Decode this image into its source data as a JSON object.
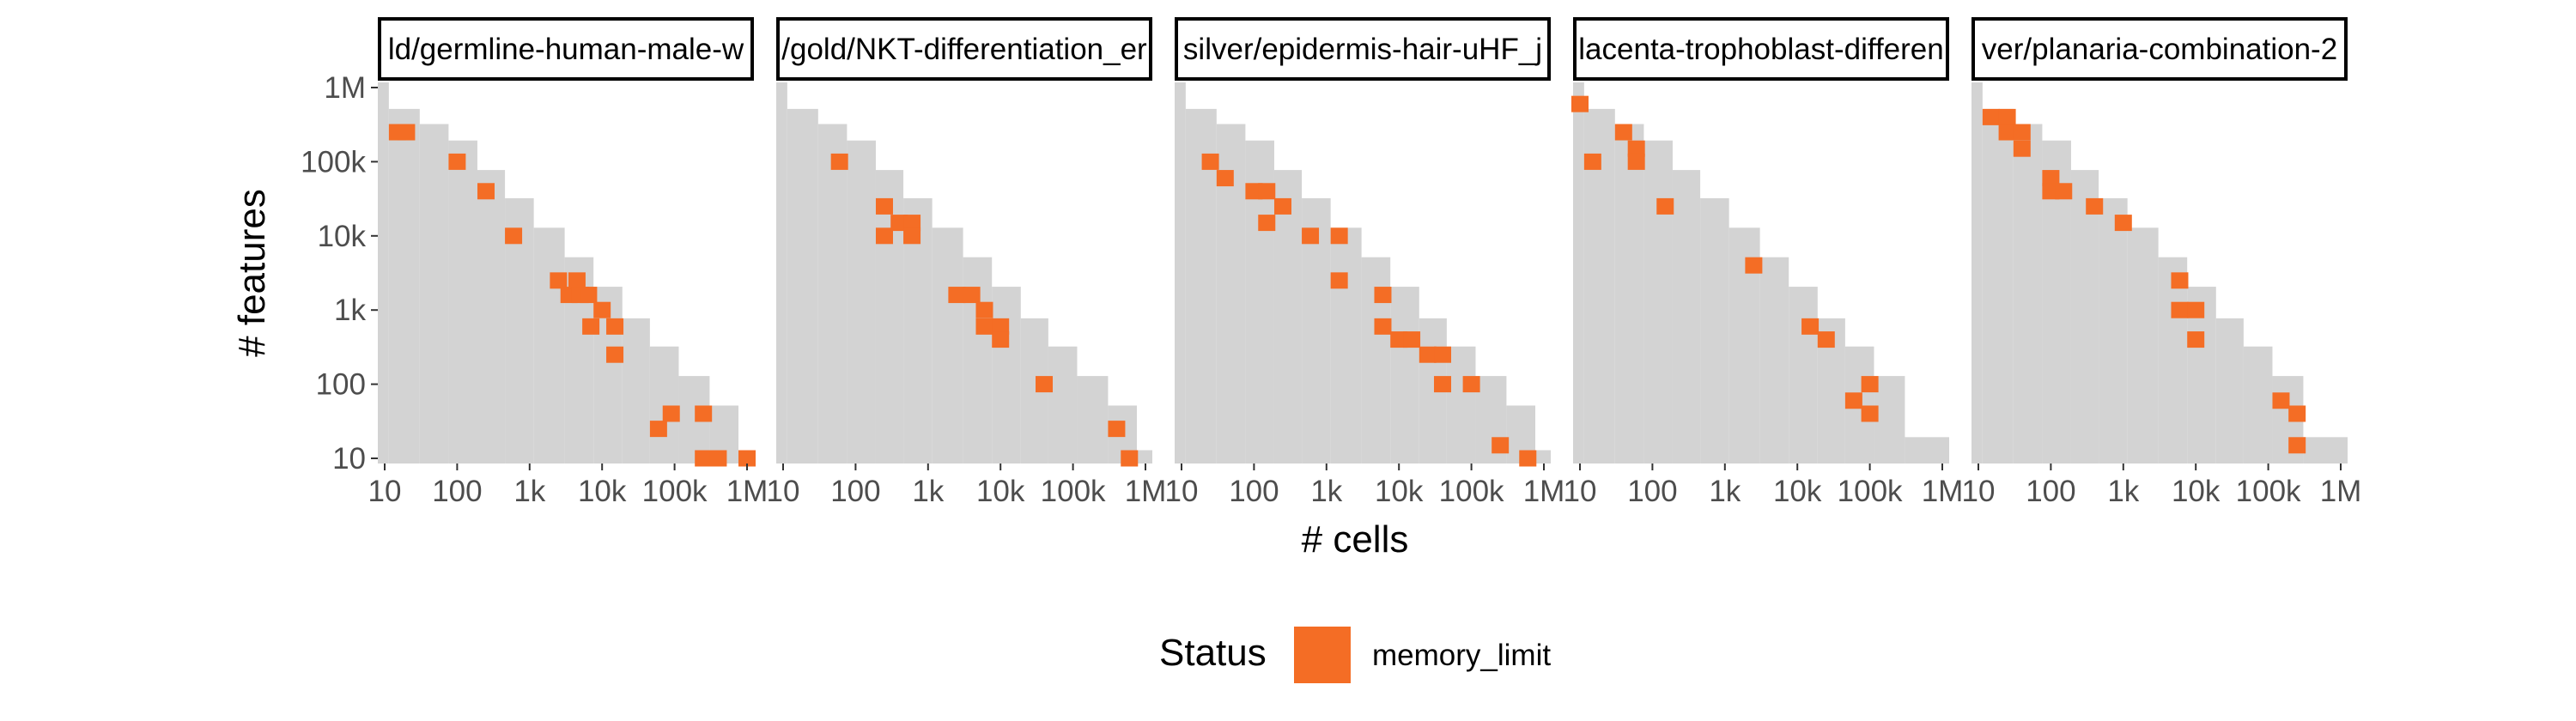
{
  "chart_data": {
    "type": "heatmap",
    "xlabel": "# cells",
    "ylabel": "# features",
    "x_scale": "log10",
    "y_scale": "log10",
    "xlim": [
      10,
      1000000
    ],
    "ylim": [
      10,
      1000000
    ],
    "x_ticks": [
      {
        "value": 10,
        "label": "10"
      },
      {
        "value": 100,
        "label": "100"
      },
      {
        "value": 1000,
        "label": "1k"
      },
      {
        "value": 10000,
        "label": "10k"
      },
      {
        "value": 100000,
        "label": "100k"
      },
      {
        "value": 1000000,
        "label": "1M"
      }
    ],
    "y_ticks": [
      {
        "value": 10,
        "label": "10"
      },
      {
        "value": 100,
        "label": "100"
      },
      {
        "value": 1000,
        "label": "1k"
      },
      {
        "value": 10000,
        "label": "10k"
      },
      {
        "value": 100000,
        "label": "100k"
      },
      {
        "value": 1000000,
        "label": "1M"
      }
    ],
    "background_color": "#d3d3d3",
    "legend": {
      "title": "Status",
      "position": "bottom",
      "entries": [
        {
          "label": "memory_limit",
          "color": "#f46d25"
        }
      ]
    },
    "panels": [
      {
        "title": "ld/germline-human-male-w",
        "memory_limit_cells": [
          {
            "cells": 15,
            "features": 250000
          },
          {
            "cells": 20,
            "features": 250000
          },
          {
            "cells": 100,
            "features": 100000
          },
          {
            "cells": 250,
            "features": 40000
          },
          {
            "cells": 600,
            "features": 10000
          },
          {
            "cells": 2500,
            "features": 2500
          },
          {
            "cells": 3500,
            "features": 1600
          },
          {
            "cells": 4500,
            "features": 2500
          },
          {
            "cells": 5000,
            "features": 1600
          },
          {
            "cells": 6500,
            "features": 1600
          },
          {
            "cells": 10000,
            "features": 1000
          },
          {
            "cells": 7000,
            "features": 600
          },
          {
            "cells": 15000,
            "features": 600
          },
          {
            "cells": 15000,
            "features": 250
          },
          {
            "cells": 60000,
            "features": 25
          },
          {
            "cells": 90000,
            "features": 40
          },
          {
            "cells": 250000,
            "features": 40
          },
          {
            "cells": 250000,
            "features": 10
          },
          {
            "cells": 400000,
            "features": 10
          },
          {
            "cells": 1000000,
            "features": 10
          }
        ],
        "profile": [
          {
            "cells": 10,
            "max_features": 1000000
          },
          {
            "cells": 15,
            "max_features": 400000
          },
          {
            "cells": 40,
            "max_features": 250000
          },
          {
            "cells": 100,
            "max_features": 150000
          },
          {
            "cells": 250,
            "max_features": 60000
          },
          {
            "cells": 600,
            "max_features": 25000
          },
          {
            "cells": 1500,
            "max_features": 10000
          },
          {
            "cells": 4000,
            "max_features": 4000
          },
          {
            "cells": 10000,
            "max_features": 1600
          },
          {
            "cells": 25000,
            "max_features": 600
          },
          {
            "cells": 60000,
            "max_features": 250
          },
          {
            "cells": 150000,
            "max_features": 100
          },
          {
            "cells": 400000,
            "max_features": 40
          },
          {
            "cells": 1000000,
            "max_features": 10
          }
        ]
      },
      {
        "title": "/gold/NKT-differentiation_er",
        "memory_limit_cells": [
          {
            "cells": 60,
            "features": 100000
          },
          {
            "cells": 250,
            "features": 25000
          },
          {
            "cells": 250,
            "features": 10000
          },
          {
            "cells": 400,
            "features": 15000
          },
          {
            "cells": 600,
            "features": 15000
          },
          {
            "cells": 600,
            "features": 10000
          },
          {
            "cells": 2500,
            "features": 1600
          },
          {
            "cells": 4000,
            "features": 1600
          },
          {
            "cells": 6000,
            "features": 1000
          },
          {
            "cells": 6000,
            "features": 600
          },
          {
            "cells": 10000,
            "features": 600
          },
          {
            "cells": 10000,
            "features": 400
          },
          {
            "cells": 40000,
            "features": 100
          },
          {
            "cells": 400000,
            "features": 25
          },
          {
            "cells": 600000,
            "features": 10
          }
        ],
        "profile": [
          {
            "cells": 10,
            "max_features": 1000000
          },
          {
            "cells": 15,
            "max_features": 400000
          },
          {
            "cells": 40,
            "max_features": 250000
          },
          {
            "cells": 100,
            "max_features": 150000
          },
          {
            "cells": 250,
            "max_features": 60000
          },
          {
            "cells": 600,
            "max_features": 25000
          },
          {
            "cells": 1500,
            "max_features": 10000
          },
          {
            "cells": 4000,
            "max_features": 4000
          },
          {
            "cells": 10000,
            "max_features": 1600
          },
          {
            "cells": 25000,
            "max_features": 600
          },
          {
            "cells": 60000,
            "max_features": 250
          },
          {
            "cells": 150000,
            "max_features": 100
          },
          {
            "cells": 400000,
            "max_features": 40
          },
          {
            "cells": 1000000,
            "max_features": 10
          }
        ]
      },
      {
        "title": "silver/epidermis-hair-uHF_j",
        "memory_limit_cells": [
          {
            "cells": 25,
            "features": 100000
          },
          {
            "cells": 40,
            "features": 60000
          },
          {
            "cells": 100,
            "features": 40000
          },
          {
            "cells": 150,
            "features": 40000
          },
          {
            "cells": 150,
            "features": 15000
          },
          {
            "cells": 250,
            "features": 25000
          },
          {
            "cells": 600,
            "features": 10000
          },
          {
            "cells": 1500,
            "features": 10000
          },
          {
            "cells": 1500,
            "features": 2500
          },
          {
            "cells": 6000,
            "features": 1600
          },
          {
            "cells": 6000,
            "features": 600
          },
          {
            "cells": 10000,
            "features": 400
          },
          {
            "cells": 15000,
            "features": 400
          },
          {
            "cells": 25000,
            "features": 250
          },
          {
            "cells": 40000,
            "features": 250
          },
          {
            "cells": 40000,
            "features": 100
          },
          {
            "cells": 100000,
            "features": 100
          },
          {
            "cells": 250000,
            "features": 15
          },
          {
            "cells": 600000,
            "features": 10
          }
        ],
        "profile": [
          {
            "cells": 10,
            "max_features": 1000000
          },
          {
            "cells": 15,
            "max_features": 400000
          },
          {
            "cells": 40,
            "max_features": 250000
          },
          {
            "cells": 100,
            "max_features": 150000
          },
          {
            "cells": 250,
            "max_features": 60000
          },
          {
            "cells": 600,
            "max_features": 25000
          },
          {
            "cells": 1500,
            "max_features": 10000
          },
          {
            "cells": 4000,
            "max_features": 4000
          },
          {
            "cells": 10000,
            "max_features": 1600
          },
          {
            "cells": 25000,
            "max_features": 600
          },
          {
            "cells": 60000,
            "max_features": 250
          },
          {
            "cells": 150000,
            "max_features": 100
          },
          {
            "cells": 400000,
            "max_features": 40
          },
          {
            "cells": 1000000,
            "max_features": 10
          }
        ]
      },
      {
        "title": "lacenta-trophoblast-differen",
        "memory_limit_cells": [
          {
            "cells": 10,
            "features": 600000
          },
          {
            "cells": 15,
            "features": 100000
          },
          {
            "cells": 40,
            "features": 250000
          },
          {
            "cells": 60,
            "features": 150000
          },
          {
            "cells": 60,
            "features": 100000
          },
          {
            "cells": 150,
            "features": 25000
          },
          {
            "cells": 2500,
            "features": 4000
          },
          {
            "cells": 15000,
            "features": 600
          },
          {
            "cells": 25000,
            "features": 400
          },
          {
            "cells": 60000,
            "features": 60
          },
          {
            "cells": 100000,
            "features": 100
          },
          {
            "cells": 100000,
            "features": 40
          }
        ],
        "profile": [
          {
            "cells": 10,
            "max_features": 1000000
          },
          {
            "cells": 15,
            "max_features": 400000
          },
          {
            "cells": 40,
            "max_features": 250000
          },
          {
            "cells": 100,
            "max_features": 150000
          },
          {
            "cells": 250,
            "max_features": 60000
          },
          {
            "cells": 600,
            "max_features": 25000
          },
          {
            "cells": 1500,
            "max_features": 10000
          },
          {
            "cells": 4000,
            "max_features": 4000
          },
          {
            "cells": 10000,
            "max_features": 1600
          },
          {
            "cells": 25000,
            "max_features": 600
          },
          {
            "cells": 60000,
            "max_features": 250
          },
          {
            "cells": 150000,
            "max_features": 100
          },
          {
            "cells": 400000,
            "max_features": 15
          },
          {
            "cells": 1000000,
            "max_features": 15
          }
        ]
      },
      {
        "title": "ver/planaria-combination-2",
        "memory_limit_cells": [
          {
            "cells": 15,
            "features": 400000
          },
          {
            "cells": 25,
            "features": 400000
          },
          {
            "cells": 25,
            "features": 250000
          },
          {
            "cells": 40,
            "features": 250000
          },
          {
            "cells": 40,
            "features": 150000
          },
          {
            "cells": 100,
            "features": 60000
          },
          {
            "cells": 100,
            "features": 40000
          },
          {
            "cells": 150,
            "features": 40000
          },
          {
            "cells": 400,
            "features": 25000
          },
          {
            "cells": 1000,
            "features": 15000
          },
          {
            "cells": 6000,
            "features": 2500
          },
          {
            "cells": 6000,
            "features": 1000
          },
          {
            "cells": 10000,
            "features": 1000
          },
          {
            "cells": 10000,
            "features": 400
          },
          {
            "cells": 150000,
            "features": 60
          },
          {
            "cells": 250000,
            "features": 40
          },
          {
            "cells": 250000,
            "features": 15
          }
        ],
        "profile": [
          {
            "cells": 10,
            "max_features": 1000000
          },
          {
            "cells": 15,
            "max_features": 400000
          },
          {
            "cells": 40,
            "max_features": 250000
          },
          {
            "cells": 100,
            "max_features": 150000
          },
          {
            "cells": 250,
            "max_features": 60000
          },
          {
            "cells": 600,
            "max_features": 25000
          },
          {
            "cells": 1500,
            "max_features": 10000
          },
          {
            "cells": 4000,
            "max_features": 4000
          },
          {
            "cells": 10000,
            "max_features": 1600
          },
          {
            "cells": 25000,
            "max_features": 600
          },
          {
            "cells": 60000,
            "max_features": 250
          },
          {
            "cells": 150000,
            "max_features": 100
          },
          {
            "cells": 400000,
            "max_features": 15
          },
          {
            "cells": 1000000,
            "max_features": 15
          }
        ]
      }
    ]
  }
}
